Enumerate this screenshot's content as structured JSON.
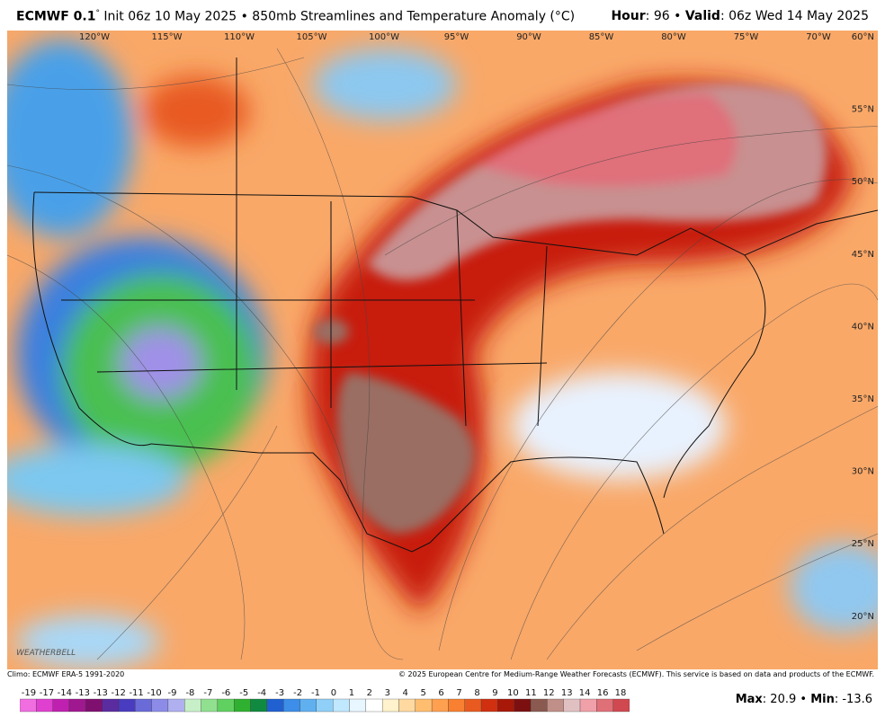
{
  "header": {
    "model": "ECMWF 0.1",
    "degree": "°",
    "init": "Init 06z 10 May 2025 • 850mb Streamlines and Temperature Anomaly (°C)",
    "hour_label": "Hour",
    "hour_value": ": 96 • ",
    "valid_label": "Valid",
    "valid_value": ": 06z Wed 14 May 2025"
  },
  "map": {
    "longitude_labels": [
      "120°W",
      "115°W",
      "110°W",
      "105°W",
      "100°W",
      "95°W",
      "90°W",
      "85°W",
      "80°W",
      "75°W",
      "70°W"
    ],
    "latitude_labels": [
      "60°N",
      "55°N",
      "50°N",
      "45°N",
      "40°N",
      "35°N",
      "30°N",
      "25°N",
      "20°N"
    ],
    "watermark": "WEATHERBELL"
  },
  "footer": {
    "climo": "Climo: ECMWF ERA-5 1991-2020",
    "copyright": "© 2025 European Centre for Medium-Range Weather Forecasts (ECMWF). This service is based on data and products of the ECMWF.",
    "colorbar": {
      "labels": [
        "-19",
        "-17",
        "-14",
        "-13",
        "-13",
        "-12",
        "-11",
        "-10",
        "-9",
        "-8",
        "-7",
        "-6",
        "-5",
        "-4",
        "-3",
        "-2",
        "-1",
        "0",
        "1",
        "2",
        "3",
        "4",
        "5",
        "6",
        "7",
        "8",
        "9",
        "10",
        "11",
        "12",
        "13",
        "14",
        "16",
        "18"
      ],
      "colors": [
        "#f06ee0",
        "#e040d0",
        "#c020b0",
        "#a01890",
        "#801070",
        "#5a2ca0",
        "#4a3cc0",
        "#6a6ad8",
        "#8c8ce8",
        "#b0b0f0",
        "#c8f0c8",
        "#90e090",
        "#60d060",
        "#30b030",
        "#108a40",
        "#2060d0",
        "#3c8ee8",
        "#60b0f0",
        "#90d0f8",
        "#c0e8ff",
        "#e8f6ff",
        "#ffffff",
        "#fff2cc",
        "#ffd9a0",
        "#ffbd70",
        "#ffa050",
        "#f88030",
        "#e85a20",
        "#d03010",
        "#a81808",
        "#7c1010",
        "#8a5a50",
        "#c09088",
        "#e0c0c0",
        "#f0a0a8",
        "#e07078",
        "#d04850"
      ]
    },
    "max_label": "Max",
    "max_value": ": 20.9 • ",
    "min_label": "Min",
    "min_value": ": -13.6"
  }
}
